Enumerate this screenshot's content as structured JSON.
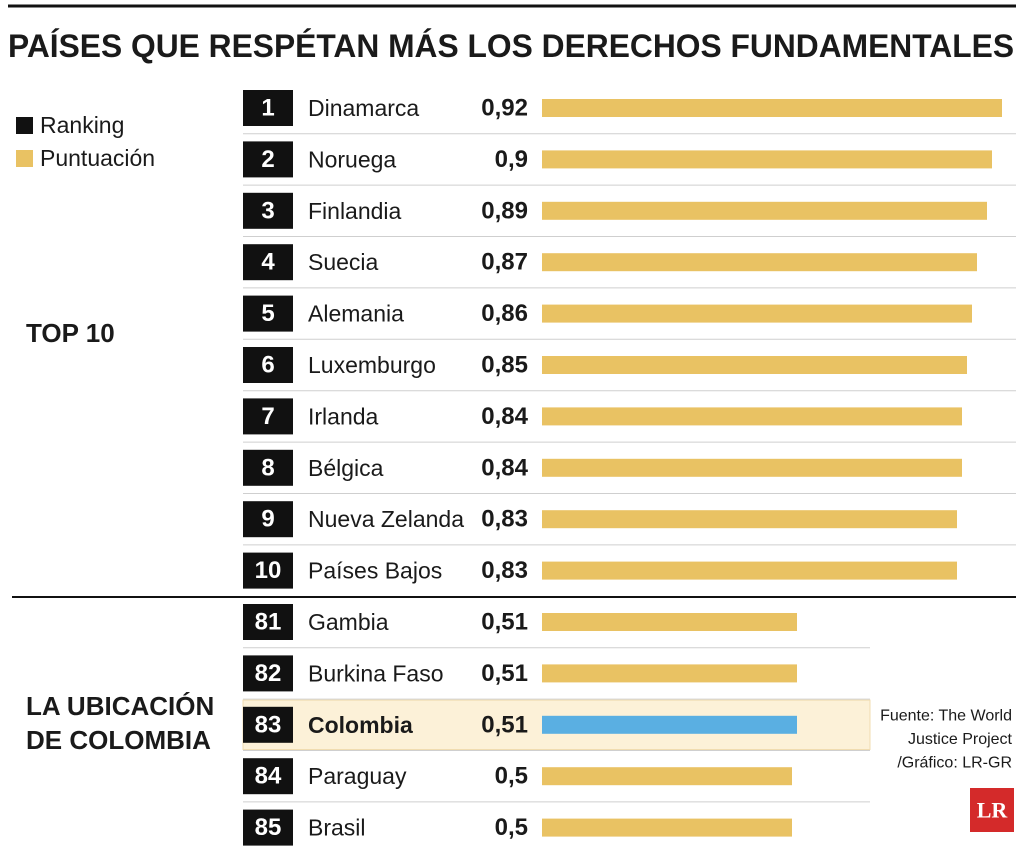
{
  "chart_data": {
    "type": "bar",
    "title": "PAÍSES QUE RESPÉTAN MÁS LOS DERECHOS FUNDAMENTALES",
    "legend": [
      {
        "name": "Ranking",
        "color": "#111111"
      },
      {
        "name": "Puntuación",
        "color": "#e9c263"
      }
    ],
    "group_labels": [
      [
        "TOP 10"
      ],
      [
        "LA UBICACIÓN",
        "DE COLOMBIA"
      ]
    ],
    "ranks": [
      1,
      2,
      3,
      4,
      5,
      6,
      7,
      8,
      9,
      10,
      81,
      82,
      83,
      84,
      85
    ],
    "categories": [
      "Dinamarca",
      "Noruega",
      "Finlandia",
      "Suecia",
      "Alemania",
      "Luxemburgo",
      "Irlanda",
      "Bélgica",
      "Nueva Zelanda",
      "Países Bajos",
      "Gambia",
      "Burkina Faso",
      "Colombia",
      "Paraguay",
      "Brasil"
    ],
    "values": [
      0.92,
      0.9,
      0.89,
      0.87,
      0.86,
      0.85,
      0.84,
      0.84,
      0.83,
      0.83,
      0.51,
      0.51,
      0.51,
      0.5,
      0.5
    ],
    "value_labels": [
      "0,92",
      "0,9",
      "0,89",
      "0,87",
      "0,86",
      "0,85",
      "0,84",
      "0,84",
      "0,83",
      "0,83",
      "0,51",
      "0,51",
      "0,51",
      "0,5",
      "0,5"
    ],
    "color": "#e9c263",
    "bar_colors": [
      "#e9c263",
      "#e9c263",
      "#e9c263",
      "#e9c263",
      "#e9c263",
      "#e9c263",
      "#e9c263",
      "#e9c263",
      "#e9c263",
      "#e9c263",
      "#e9c263",
      "#e9c263",
      "#5aafe2",
      "#e9c263",
      "#e9c263"
    ],
    "highlight_background": "#fcf1d8",
    "source": [
      "Fuente: The World",
      "Justice Project",
      "/Gráfico: LR-GR"
    ],
    "logo": "LR"
  }
}
